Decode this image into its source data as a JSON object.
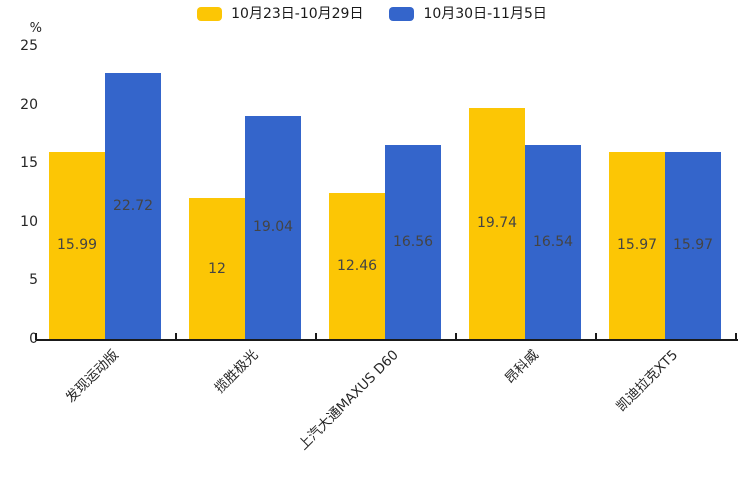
{
  "chart_data": {
    "type": "bar",
    "categories": [
      "发现运动版",
      "揽胜极光",
      "上汽大通MAXUS D60",
      "昂科威",
      "凯迪拉克XT5"
    ],
    "series": [
      {
        "name": "10月23日-10月29日",
        "color": "#FCC605",
        "values": [
          15.99,
          12,
          12.46,
          19.74,
          15.97
        ]
      },
      {
        "name": "10月30日-11月5日",
        "color": "#3465CB",
        "values": [
          22.72,
          19.04,
          16.56,
          16.54,
          15.97
        ]
      }
    ],
    "title": "",
    "xlabel": "",
    "ylabel": "%",
    "yticks": [
      0,
      5,
      10,
      15,
      20,
      25
    ],
    "ylim": [
      0,
      25
    ],
    "grid": false,
    "legend_position": "top",
    "value_label_color": "#444444",
    "axis_color": "#1a1a1a"
  }
}
